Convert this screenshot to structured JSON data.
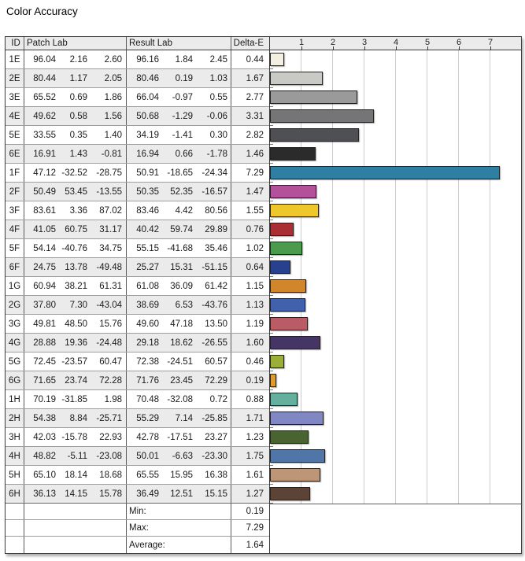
{
  "title": "Color Accuracy",
  "colors": {
    "table_border": "#3c3c3c",
    "row_alt": "#ebebeb",
    "grid_line": "#cccccc",
    "bar_border": "#26211c"
  },
  "table": {
    "headers": {
      "id": "ID",
      "patch": "Patch Lab",
      "result": "Result Lab",
      "delta": "Delta-E"
    },
    "rows": [
      {
        "id": "1E",
        "patch": [
          "96.04",
          "2.16",
          "2.60"
        ],
        "result": [
          "96.16",
          "1.84",
          "2.45"
        ],
        "delta": "0.44",
        "color": "#f3efe3"
      },
      {
        "id": "2E",
        "patch": [
          "80.44",
          "1.17",
          "2.05"
        ],
        "result": [
          "80.46",
          "0.19",
          "1.03"
        ],
        "delta": "1.67",
        "color": "#c9c9c6"
      },
      {
        "id": "3E",
        "patch": [
          "65.52",
          "0.69",
          "1.86"
        ],
        "result": [
          "66.04",
          "-0.97",
          "0.55"
        ],
        "delta": "2.77",
        "color": "#9a9a9a"
      },
      {
        "id": "4E",
        "patch": [
          "49.62",
          "0.58",
          "1.56"
        ],
        "result": [
          "50.68",
          "-1.29",
          "-0.06"
        ],
        "delta": "3.31",
        "color": "#757577"
      },
      {
        "id": "5E",
        "patch": [
          "33.55",
          "0.35",
          "1.40"
        ],
        "result": [
          "34.19",
          "-1.41",
          "0.30"
        ],
        "delta": "2.82",
        "color": "#4e5053"
      },
      {
        "id": "6E",
        "patch": [
          "16.91",
          "1.43",
          "-0.81"
        ],
        "result": [
          "16.94",
          "0.66",
          "-1.78"
        ],
        "delta": "1.46",
        "color": "#2b2b2b"
      },
      {
        "id": "1F",
        "patch": [
          "47.12",
          "-32.52",
          "-28.75"
        ],
        "result": [
          "50.91",
          "-18.65",
          "-24.34"
        ],
        "delta": "7.29",
        "color": "#2f7fa3"
      },
      {
        "id": "2F",
        "patch": [
          "50.49",
          "53.45",
          "-13.55"
        ],
        "result": [
          "50.35",
          "52.35",
          "-16.57"
        ],
        "delta": "1.47",
        "color": "#b4519b"
      },
      {
        "id": "3F",
        "patch": [
          "83.61",
          "3.36",
          "87.02"
        ],
        "result": [
          "83.46",
          "4.42",
          "80.56"
        ],
        "delta": "1.55",
        "color": "#edc72c"
      },
      {
        "id": "4F",
        "patch": [
          "41.05",
          "60.75",
          "31.17"
        ],
        "result": [
          "40.42",
          "59.74",
          "29.89"
        ],
        "delta": "0.76",
        "color": "#a92f35"
      },
      {
        "id": "5F",
        "patch": [
          "54.14",
          "-40.76",
          "34.75"
        ],
        "result": [
          "55.15",
          "-41.68",
          "35.46"
        ],
        "delta": "1.02",
        "color": "#4a9b4e"
      },
      {
        "id": "6F",
        "patch": [
          "24.75",
          "13.78",
          "-49.48"
        ],
        "result": [
          "25.27",
          "15.31",
          "-51.15"
        ],
        "delta": "0.64",
        "color": "#27418f"
      },
      {
        "id": "1G",
        "patch": [
          "60.94",
          "38.21",
          "61.31"
        ],
        "result": [
          "61.08",
          "36.09",
          "61.42"
        ],
        "delta": "1.15",
        "color": "#d2862c"
      },
      {
        "id": "2G",
        "patch": [
          "37.80",
          "7.30",
          "-43.04"
        ],
        "result": [
          "38.69",
          "6.53",
          "-43.76"
        ],
        "delta": "1.13",
        "color": "#4161ad"
      },
      {
        "id": "3G",
        "patch": [
          "49.81",
          "48.50",
          "15.76"
        ],
        "result": [
          "49.60",
          "47.18",
          "13.50"
        ],
        "delta": "1.19",
        "color": "#ba5c66"
      },
      {
        "id": "4G",
        "patch": [
          "28.88",
          "19.36",
          "-24.48"
        ],
        "result": [
          "29.18",
          "18.62",
          "-26.55"
        ],
        "delta": "1.60",
        "color": "#443564"
      },
      {
        "id": "5G",
        "patch": [
          "72.45",
          "-23.57",
          "60.47"
        ],
        "result": [
          "72.38",
          "-24.51",
          "60.57"
        ],
        "delta": "0.46",
        "color": "#9aaf37"
      },
      {
        "id": "6G",
        "patch": [
          "71.65",
          "23.74",
          "72.28"
        ],
        "result": [
          "71.76",
          "23.45",
          "72.29"
        ],
        "delta": "0.19",
        "color": "#dd9d2b"
      },
      {
        "id": "1H",
        "patch": [
          "70.19",
          "-31.85",
          "1.98"
        ],
        "result": [
          "70.48",
          "-32.08",
          "0.72"
        ],
        "delta": "0.88",
        "color": "#65af9f"
      },
      {
        "id": "2H",
        "patch": [
          "54.38",
          "8.84",
          "-25.71"
        ],
        "result": [
          "55.29",
          "7.14",
          "-25.85"
        ],
        "delta": "1.71",
        "color": "#8087c3"
      },
      {
        "id": "3H",
        "patch": [
          "42.03",
          "-15.78",
          "22.93"
        ],
        "result": [
          "42.78",
          "-17.51",
          "23.27"
        ],
        "delta": "1.23",
        "color": "#4a6431"
      },
      {
        "id": "4H",
        "patch": [
          "48.82",
          "-5.11",
          "-23.08"
        ],
        "result": [
          "50.01",
          "-6.63",
          "-23.30"
        ],
        "delta": "1.75",
        "color": "#5076a8"
      },
      {
        "id": "5H",
        "patch": [
          "65.10",
          "18.14",
          "18.68"
        ],
        "result": [
          "65.55",
          "15.95",
          "16.38"
        ],
        "delta": "1.61",
        "color": "#bd9678"
      },
      {
        "id": "6H",
        "patch": [
          "36.13",
          "14.15",
          "15.78"
        ],
        "result": [
          "36.49",
          "12.51",
          "15.15"
        ],
        "delta": "1.27",
        "color": "#5b4436"
      }
    ],
    "summary": [
      {
        "label": "Min:",
        "value": "0.19"
      },
      {
        "label": "Max:",
        "value": "7.29"
      },
      {
        "label": "Average:",
        "value": "1.64"
      }
    ]
  },
  "chart": {
    "axis_ticks": [
      "1",
      "2",
      "3",
      "4",
      "5",
      "6",
      "7"
    ],
    "axis_max": 8
  },
  "chart_data": {
    "type": "bar",
    "orientation": "horizontal",
    "title": "Color Accuracy",
    "xlabel": "Delta-E",
    "xlim": [
      0,
      8
    ],
    "grid": true,
    "categories": [
      "1E",
      "2E",
      "3E",
      "4E",
      "5E",
      "6E",
      "1F",
      "2F",
      "3F",
      "4F",
      "5F",
      "6F",
      "1G",
      "2G",
      "3G",
      "4G",
      "5G",
      "6G",
      "1H",
      "2H",
      "3H",
      "4H",
      "5H",
      "6H"
    ],
    "values": [
      0.44,
      1.67,
      2.77,
      3.31,
      2.82,
      1.46,
      7.29,
      1.47,
      1.55,
      0.76,
      1.02,
      0.64,
      1.15,
      1.13,
      1.19,
      1.6,
      0.46,
      0.19,
      0.88,
      1.71,
      1.23,
      1.75,
      1.61,
      1.27
    ],
    "bar_colors": [
      "#f3efe3",
      "#c9c9c6",
      "#9a9a9a",
      "#757577",
      "#4e5053",
      "#2b2b2b",
      "#2f7fa3",
      "#b4519b",
      "#edc72c",
      "#a92f35",
      "#4a9b4e",
      "#27418f",
      "#d2862c",
      "#4161ad",
      "#ba5c66",
      "#443564",
      "#9aaf37",
      "#dd9d2b",
      "#65af9f",
      "#8087c3",
      "#4a6431",
      "#5076a8",
      "#bd9678",
      "#5b4436"
    ],
    "summary": {
      "min": 0.19,
      "max": 7.29,
      "average": 1.64
    }
  }
}
